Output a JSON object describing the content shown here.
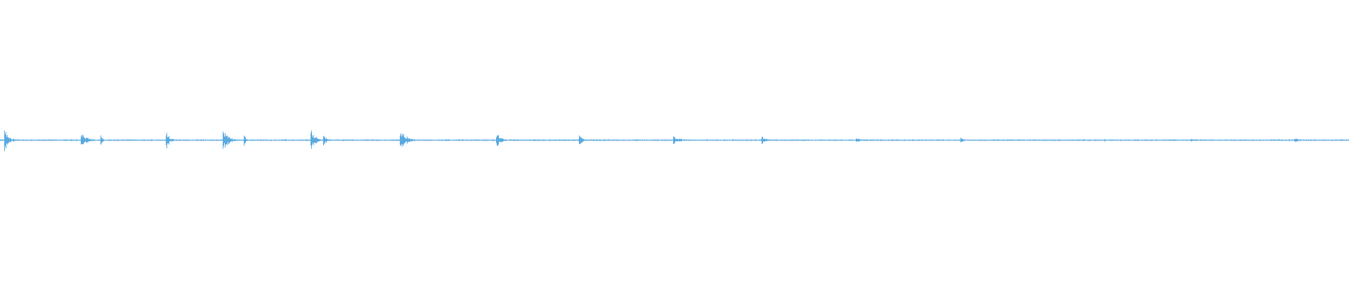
{
  "waveform": {
    "color": "#5aaae0"
  }
}
